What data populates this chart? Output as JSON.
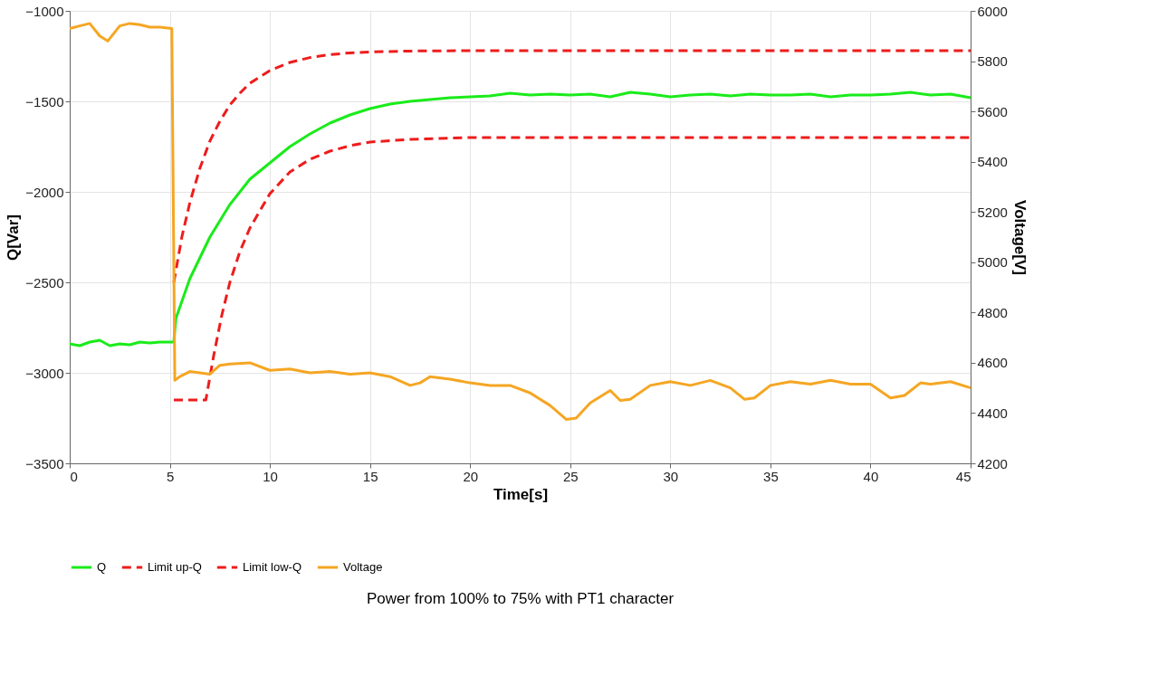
{
  "chart_data": {
    "type": "line",
    "xlabel": "Time[s]",
    "ylabel": "Q[Var]",
    "y2label": "Voltage[V]",
    "xlim": [
      0,
      45
    ],
    "xticks": [
      0,
      5,
      10,
      15,
      20,
      25,
      30,
      35,
      40,
      45
    ],
    "ylim": [
      -3500,
      -1000
    ],
    "yticks": [
      -3500,
      -3000,
      -2500,
      -2000,
      -1500,
      -1000
    ],
    "y2lim": [
      4200,
      6000
    ],
    "y2ticks": [
      4200,
      4400,
      4600,
      4800,
      5000,
      5200,
      5400,
      5600,
      5800,
      6000
    ],
    "grid": true,
    "legend": "bottom",
    "marker": "none",
    "annotations": [
      "Power from 100% to 75% with PT1 character"
    ],
    "series": [
      {
        "name": "Q",
        "color": "#1aeb1a",
        "line_style": "solid",
        "x": [
          0,
          0.5,
          1,
          1.5,
          2,
          2.5,
          3,
          3.5,
          4,
          4.5,
          5.2,
          5.3,
          6,
          7,
          8,
          9,
          10,
          11,
          12,
          13,
          14,
          15,
          16,
          17,
          18,
          19,
          20,
          21,
          22,
          23,
          24,
          25,
          26,
          27,
          28,
          29,
          30,
          31,
          32,
          33,
          34,
          35,
          36,
          37,
          38,
          39,
          40,
          41,
          42,
          43,
          44,
          45
        ],
        "values": [
          -2840,
          -2850,
          -2830,
          -2820,
          -2850,
          -2840,
          -2845,
          -2830,
          -2835,
          -2830,
          -2830,
          -2700,
          -2480,
          -2250,
          -2070,
          -1930,
          -1840,
          -1750,
          -1680,
          -1620,
          -1575,
          -1540,
          -1515,
          -1500,
          -1490,
          -1480,
          -1475,
          -1470,
          -1455,
          -1465,
          -1460,
          -1465,
          -1460,
          -1475,
          -1450,
          -1460,
          -1475,
          -1465,
          -1460,
          -1470,
          -1460,
          -1465,
          -1465,
          -1460,
          -1475,
          -1465,
          -1465,
          -1460,
          -1450,
          -1465,
          -1460,
          -1480
        ]
      },
      {
        "name": "Limit up-Q",
        "color": "#ee1c1c",
        "line_style": "dashed",
        "x": [
          5.2,
          5.6,
          6,
          6.5,
          7,
          7.5,
          8,
          8.5,
          9,
          10,
          11,
          12,
          13,
          14,
          15,
          17,
          20,
          45
        ],
        "values": [
          -2500,
          -2250,
          -2060,
          -1870,
          -1720,
          -1610,
          -1520,
          -1455,
          -1400,
          -1330,
          -1285,
          -1258,
          -1242,
          -1232,
          -1227,
          -1222,
          -1220,
          -1220
        ]
      },
      {
        "name": "Limit low-Q",
        "color": "#ee1c1c",
        "line_style": "dashed",
        "x": [
          5.2,
          6.8,
          7.2,
          7.6,
          8,
          8.5,
          9,
          10,
          11,
          12,
          13,
          14,
          15,
          17,
          20,
          45
        ],
        "values": [
          -3150,
          -3150,
          -2900,
          -2680,
          -2500,
          -2330,
          -2200,
          -2010,
          -1890,
          -1820,
          -1775,
          -1745,
          -1725,
          -1710,
          -1700,
          -1700
        ]
      },
      {
        "name": "Voltage",
        "color": "#f5a623",
        "line_style": "solid",
        "axis": "y2",
        "x": [
          0,
          0.5,
          1,
          1.5,
          1.9,
          2.5,
          3,
          3.5,
          4,
          4.5,
          5.1,
          5.25,
          5.5,
          6,
          6.5,
          7,
          7.5,
          8,
          9,
          10,
          11,
          12,
          13,
          14,
          15,
          16,
          17,
          17.5,
          18,
          19,
          20,
          21,
          22,
          23,
          24,
          24.8,
          25.3,
          26,
          27,
          27.5,
          28,
          29,
          30,
          31,
          32,
          33,
          33.7,
          34.2,
          35,
          36,
          37,
          38,
          39,
          40,
          41,
          41.7,
          42.5,
          43,
          44,
          45
        ],
        "values": [
          5930,
          5940,
          5950,
          5900,
          5880,
          5940,
          5950,
          5945,
          5935,
          5935,
          5930,
          4530,
          4545,
          4565,
          4560,
          4555,
          4590,
          4595,
          4600,
          4570,
          4575,
          4560,
          4565,
          4555,
          4560,
          4545,
          4510,
          4520,
          4545,
          4535,
          4520,
          4510,
          4510,
          4480,
          4430,
          4375,
          4380,
          4440,
          4490,
          4450,
          4455,
          4510,
          4525,
          4510,
          4530,
          4500,
          4455,
          4460,
          4510,
          4525,
          4515,
          4530,
          4515,
          4515,
          4460,
          4470,
          4520,
          4515,
          4525,
          4500
        ]
      }
    ]
  }
}
